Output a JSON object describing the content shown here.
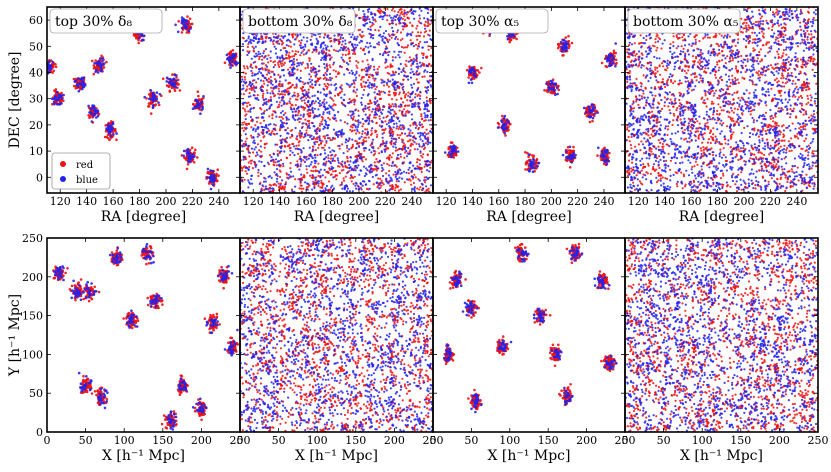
{
  "legend": {
    "placement": "lower-left of first panel",
    "entries": [
      {
        "label": "red",
        "color": "#ee1111"
      },
      {
        "label": "blue",
        "color": "#2222ee"
      }
    ]
  },
  "colors": {
    "red": "#ee1111",
    "blue": "#2222ee"
  },
  "chart_data": [
    {
      "type": "scatter",
      "title": "top 30% δ₈",
      "xlabel": "RA [degree]",
      "ylabel": "DEC [degree]",
      "xlim": [
        110,
        256
      ],
      "ylim": [
        -6,
        65
      ],
      "xticks": [
        120,
        140,
        160,
        180,
        200,
        220,
        240
      ],
      "yticks": [
        0,
        10,
        20,
        30,
        40,
        50,
        60
      ],
      "grid": false,
      "series": [
        {
          "name": "red",
          "color": "#ee1111",
          "clusters": [
            [
              180,
              55
            ],
            [
              118,
              30
            ],
            [
              135,
              36
            ],
            [
              205,
              36
            ],
            [
              218,
              8
            ],
            [
              158,
              18
            ],
            [
              225,
              28
            ],
            [
              250,
              45
            ],
            [
              150,
              43
            ],
            [
              190,
              30
            ],
            [
              235,
              0
            ],
            [
              145,
              25
            ],
            [
              112,
              42
            ],
            [
              215,
              58
            ]
          ]
        },
        {
          "name": "blue",
          "color": "#2222ee",
          "clusters": [
            [
              180,
              55
            ],
            [
              118,
              30
            ],
            [
              135,
              36
            ],
            [
              205,
              36
            ],
            [
              218,
              8
            ],
            [
              158,
              18
            ],
            [
              225,
              28
            ],
            [
              250,
              45
            ],
            [
              150,
              43
            ],
            [
              190,
              30
            ],
            [
              235,
              0
            ],
            [
              145,
              25
            ],
            [
              112,
              42
            ],
            [
              215,
              58
            ]
          ]
        }
      ]
    },
    {
      "type": "scatter",
      "title": "bottom 30% δ₈",
      "xlabel": "RA [degree]",
      "ylabel": "",
      "xlim": [
        110,
        256
      ],
      "ylim": [
        -6,
        65
      ],
      "xticks": [
        120,
        140,
        160,
        180,
        200,
        220,
        240
      ],
      "yticks": [
        0,
        10,
        20,
        30,
        40,
        50,
        60
      ],
      "grid": false,
      "series": [
        {
          "name": "red",
          "color": "#ee1111",
          "distribution": "uniform"
        },
        {
          "name": "blue",
          "color": "#2222ee",
          "distribution": "uniform"
        }
      ]
    },
    {
      "type": "scatter",
      "title": "top 30% α₅",
      "xlabel": "RA [degree]",
      "ylabel": "",
      "xlim": [
        110,
        256
      ],
      "ylim": [
        -6,
        65
      ],
      "xticks": [
        120,
        140,
        160,
        180,
        200,
        220,
        240
      ],
      "yticks": [
        0,
        10,
        20,
        30,
        40,
        50,
        60
      ],
      "grid": false,
      "series": [
        {
          "name": "red",
          "color": "#ee1111",
          "clusters": [
            [
              215,
              8
            ],
            [
              170,
              55
            ],
            [
              245,
              45
            ],
            [
              165,
              20
            ],
            [
              200,
              35
            ],
            [
              140,
              40
            ],
            [
              125,
              10
            ],
            [
              230,
              25
            ],
            [
              185,
              5
            ],
            [
              150,
              58
            ],
            [
              210,
              50
            ],
            [
              240,
              8
            ]
          ]
        },
        {
          "name": "blue",
          "color": "#2222ee",
          "clusters": [
            [
              215,
              8
            ],
            [
              170,
              55
            ],
            [
              245,
              45
            ],
            [
              165,
              20
            ],
            [
              200,
              35
            ],
            [
              140,
              40
            ],
            [
              125,
              10
            ],
            [
              230,
              25
            ],
            [
              185,
              5
            ],
            [
              150,
              58
            ],
            [
              210,
              50
            ],
            [
              240,
              8
            ]
          ]
        }
      ]
    },
    {
      "type": "scatter",
      "title": "bottom 30% α₅",
      "xlabel": "RA [degree]",
      "ylabel": "",
      "xlim": [
        110,
        256
      ],
      "ylim": [
        -6,
        65
      ],
      "xticks": [
        120,
        140,
        160,
        180,
        200,
        220,
        240
      ],
      "yticks": [
        0,
        10,
        20,
        30,
        40,
        50,
        60
      ],
      "grid": false,
      "series": [
        {
          "name": "red",
          "color": "#ee1111",
          "distribution": "uniform"
        },
        {
          "name": "blue",
          "color": "#2222ee",
          "distribution": "uniform"
        }
      ]
    },
    {
      "type": "scatter",
      "title": "",
      "xlabel": "X [h⁻¹ Mpc]",
      "ylabel": "Y [h⁻¹ Mpc]",
      "xlim": [
        0,
        250
      ],
      "ylim": [
        0,
        250
      ],
      "xticks": [
        0,
        50,
        100,
        150,
        200,
        250
      ],
      "yticks": [
        0,
        50,
        100,
        150,
        200,
        250
      ],
      "grid": false,
      "series": [
        {
          "name": "red",
          "color": "#ee1111",
          "clusters": [
            [
              40,
              180
            ],
            [
              55,
              180
            ],
            [
              50,
              60
            ],
            [
              70,
              45
            ],
            [
              110,
              145
            ],
            [
              90,
              225
            ],
            [
              215,
              140
            ],
            [
              230,
              200
            ],
            [
              175,
              60
            ],
            [
              160,
              15
            ],
            [
              200,
              30
            ],
            [
              140,
              170
            ],
            [
              15,
              205
            ],
            [
              240,
              110
            ],
            [
              130,
              230
            ]
          ]
        },
        {
          "name": "blue",
          "color": "#2222ee",
          "clusters": [
            [
              40,
              180
            ],
            [
              55,
              180
            ],
            [
              50,
              60
            ],
            [
              70,
              45
            ],
            [
              110,
              145
            ],
            [
              90,
              225
            ],
            [
              215,
              140
            ],
            [
              230,
              200
            ],
            [
              175,
              60
            ],
            [
              160,
              15
            ],
            [
              200,
              30
            ],
            [
              140,
              170
            ],
            [
              15,
              205
            ],
            [
              240,
              110
            ],
            [
              130,
              230
            ]
          ]
        }
      ]
    },
    {
      "type": "scatter",
      "title": "",
      "xlabel": "X [h⁻¹ Mpc]",
      "ylabel": "",
      "xlim": [
        0,
        250
      ],
      "ylim": [
        0,
        250
      ],
      "xticks": [
        0,
        50,
        100,
        150,
        200,
        250
      ],
      "yticks": [
        0,
        50,
        100,
        150,
        200,
        250
      ],
      "grid": false,
      "series": [
        {
          "name": "red",
          "color": "#ee1111",
          "distribution": "uniform"
        },
        {
          "name": "blue",
          "color": "#2222ee",
          "distribution": "uniform"
        }
      ]
    },
    {
      "type": "scatter",
      "title": "",
      "xlabel": "X [h⁻¹ Mpc]",
      "ylabel": "",
      "xlim": [
        0,
        250
      ],
      "ylim": [
        0,
        250
      ],
      "xticks": [
        0,
        50,
        100,
        150,
        200,
        250
      ],
      "yticks": [
        0,
        50,
        100,
        150,
        200,
        250
      ],
      "grid": false,
      "series": [
        {
          "name": "red",
          "color": "#ee1111",
          "clusters": [
            [
              50,
              160
            ],
            [
              30,
              195
            ],
            [
              55,
              40
            ],
            [
              175,
              45
            ],
            [
              140,
              150
            ],
            [
              220,
              195
            ],
            [
              115,
              230
            ],
            [
              230,
              90
            ],
            [
              90,
              110
            ],
            [
              185,
              230
            ],
            [
              160,
              100
            ],
            [
              20,
              100
            ]
          ]
        },
        {
          "name": "blue",
          "color": "#2222ee",
          "clusters": [
            [
              50,
              160
            ],
            [
              30,
              195
            ],
            [
              55,
              40
            ],
            [
              175,
              45
            ],
            [
              140,
              150
            ],
            [
              220,
              195
            ],
            [
              115,
              230
            ],
            [
              230,
              90
            ],
            [
              90,
              110
            ],
            [
              185,
              230
            ],
            [
              160,
              100
            ],
            [
              20,
              100
            ]
          ]
        }
      ]
    },
    {
      "type": "scatter",
      "title": "",
      "xlabel": "X [h⁻¹ Mpc]",
      "ylabel": "",
      "xlim": [
        0,
        250
      ],
      "ylim": [
        0,
        250
      ],
      "xticks": [
        0,
        50,
        100,
        150,
        200,
        250
      ],
      "yticks": [
        0,
        50,
        100,
        150,
        200,
        250
      ],
      "grid": false,
      "series": [
        {
          "name": "red",
          "color": "#ee1111",
          "distribution": "uniform"
        },
        {
          "name": "blue",
          "color": "#2222ee",
          "distribution": "uniform"
        }
      ]
    }
  ]
}
